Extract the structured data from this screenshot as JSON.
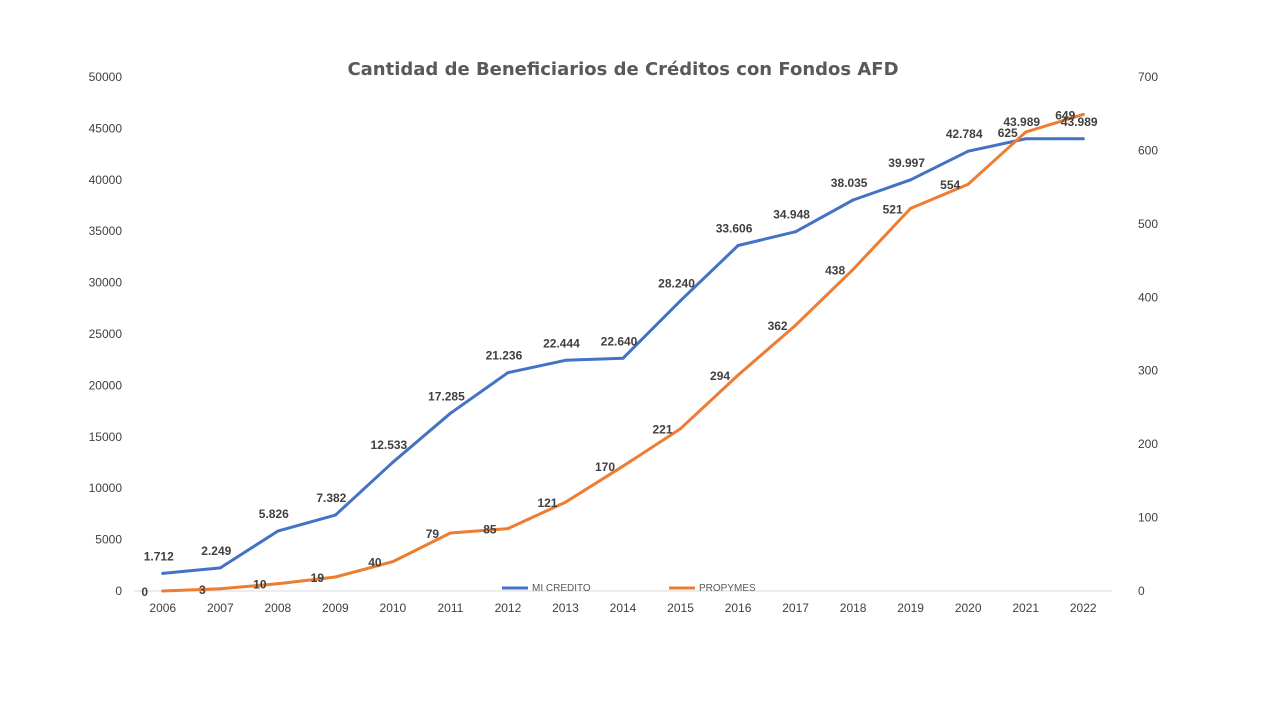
{
  "chart_data": {
    "type": "line",
    "title": "Cantidad de Beneficiarios de Créditos con Fondos AFD",
    "categories": [
      "2006",
      "2007",
      "2008",
      "2009",
      "2010",
      "2011",
      "2012",
      "2013",
      "2014",
      "2015",
      "2016",
      "2017",
      "2018",
      "2019",
      "2020",
      "2021",
      "2022"
    ],
    "y_left": {
      "min": 0,
      "max": 50000,
      "ticks": [
        "0",
        "5000",
        "10000",
        "15000",
        "20000",
        "25000",
        "30000",
        "35000",
        "40000",
        "45000",
        "50000"
      ]
    },
    "y_right": {
      "min": 0,
      "max": 700,
      "ticks": [
        "0",
        "100",
        "200",
        "300",
        "400",
        "500",
        "600",
        "700"
      ]
    },
    "grid": false,
    "legend_position": "bottom-inside",
    "series": [
      {
        "name": "MI CREDITO",
        "axis": "left",
        "color": "#4472C4",
        "values": [
          1712,
          2249,
          5826,
          7382,
          12533,
          17285,
          21236,
          22444,
          22640,
          28240,
          33606,
          34948,
          38035,
          39997,
          42784,
          43989,
          43989
        ],
        "labels": [
          "1.712",
          "2.249",
          "5.826",
          "7.382",
          "12.533",
          "17.285",
          "21.236",
          "22.444",
          "22.640",
          "28.240",
          "33.606",
          "34.948",
          "38.035",
          "39.997",
          "42.784",
          "43.989",
          "43.989"
        ]
      },
      {
        "name": "PROPYMES",
        "axis": "right",
        "color": "#ED7D31",
        "values": [
          0,
          3,
          10,
          19,
          40,
          79,
          85,
          121,
          170,
          221,
          294,
          362,
          438,
          521,
          554,
          625,
          649
        ],
        "labels": [
          "0",
          "3",
          "10",
          "19",
          "40",
          "79",
          "85",
          "121",
          "170",
          "221",
          "294",
          "362",
          "438",
          "521",
          "554",
          "625",
          "649"
        ]
      }
    ]
  }
}
